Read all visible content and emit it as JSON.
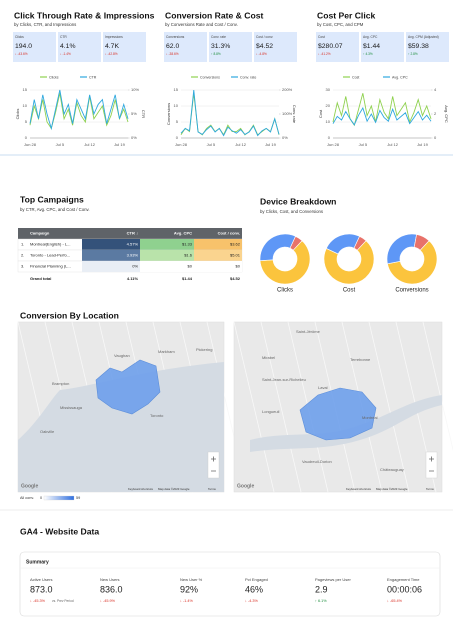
{
  "sections": [
    {
      "title": "Click Through Rate & Impressions",
      "subtitle": "by Clicks, CTR, and Impressions",
      "kpis": [
        {
          "label": "Clicks",
          "value": "194.0",
          "delta": "↓ -43.6%"
        },
        {
          "label": "CTR",
          "value": "4.1%",
          "delta": "↓ -1.4%"
        },
        {
          "label": "Impressions",
          "value": "4.7K",
          "delta": "↓ -42.8%"
        }
      ],
      "chart": {
        "type": "line",
        "categories": [
          "Jun 28",
          null,
          null,
          null,
          null,
          null,
          null,
          "Jul 5",
          null,
          null,
          null,
          null,
          null,
          null,
          "Jul 12",
          null,
          null,
          null,
          null,
          null,
          null,
          "Jul 19",
          null,
          null
        ],
        "series": [
          {
            "name": "Clicks",
            "color": "#8fd14f",
            "values": [
              4,
              10,
              6,
              12,
              5,
              3,
              8,
              14,
              6,
              9,
              4,
              11,
              7,
              5,
              13,
              6,
              8,
              10,
              4,
              7,
              12,
              6,
              9,
              5
            ]
          },
          {
            "name": "CTR",
            "color": "#2ea8df",
            "axis": "y2",
            "values": [
              3,
              8,
              4,
              9,
              5,
              2,
              6,
              10,
              5,
              7,
              3,
              8,
              6,
              4,
              9,
              5,
              7,
              8,
              3,
              6,
              9,
              4,
              7,
              4
            ]
          }
        ],
        "ylim": [
          0,
          15
        ],
        "yticks": [
          0,
          5,
          10,
          15
        ],
        "y2lim": [
          0,
          10
        ],
        "y2ticks": [
          {
            "value": 0,
            "label": "0%"
          },
          {
            "value": 5,
            "label": "5%"
          },
          {
            "value": 10,
            "label": "10%"
          }
        ],
        "y_label": "Clicks",
        "y2_label": "CTR"
      }
    },
    {
      "title": "Conversion Rate & Cost",
      "subtitle": "by Conversions Rate and Cost / Conv.",
      "kpis": [
        {
          "label": "Conversions",
          "value": "62.0",
          "delta": "↓ -38.6%"
        },
        {
          "label": "Conv. rate",
          "value": "31.3%",
          "delta": "↑ 8.8%"
        },
        {
          "label": "Cost / conv.",
          "value": "$4.52",
          "delta": "↓ -4.8%"
        }
      ],
      "chart": {
        "type": "line",
        "categories": [
          "Jun 28",
          null,
          null,
          null,
          null,
          null,
          null,
          "Jul 5",
          null,
          null,
          null,
          null,
          null,
          null,
          "Jul 12",
          null,
          null,
          null,
          null,
          null,
          null,
          "Jul 19",
          null,
          null
        ],
        "series": [
          {
            "name": "Conversions",
            "color": "#8fd14f",
            "values": [
              1,
              3,
              2,
              14,
              2,
              1,
              3,
              4,
              2,
              3,
              1,
              4,
              2,
              2,
              3,
              1,
              2,
              4,
              1,
              2,
              3,
              2,
              6,
              1
            ]
          },
          {
            "name": "Conv. rate",
            "color": "#2ea8df",
            "axis": "y2",
            "values": [
              20,
              40,
              30,
              200,
              25,
              15,
              35,
              50,
              25,
              40,
              10,
              45,
              30,
              20,
              35,
              15,
              25,
              50,
              10,
              30,
              40,
              25,
              80,
              15
            ]
          }
        ],
        "ylim": [
          0,
          15
        ],
        "yticks": [
          0,
          5,
          10,
          15
        ],
        "y2lim": [
          0,
          200
        ],
        "y2ticks": [
          {
            "value": 0,
            "label": "0%"
          },
          {
            "value": 100,
            "label": "100%"
          },
          {
            "value": 200,
            "label": "200%"
          }
        ],
        "y_label": "Conversions",
        "y2_label": "Conv. rate"
      }
    },
    {
      "title": "Cost Per Click",
      "subtitle": "by Cost, CPC, and CPM",
      "kpis": [
        {
          "label": "Cost",
          "value": "$280.07",
          "delta": "↓ -41.2%"
        },
        {
          "label": "Avg. CPC",
          "value": "$1.44",
          "delta": "↑ 4.3%"
        },
        {
          "label": "Avg. CPM (Adjusted)",
          "value": "$59.38",
          "delta": "↑ 2.8%"
        }
      ],
      "chart": {
        "type": "line",
        "categories": [
          "Jun 28",
          null,
          null,
          null,
          null,
          null,
          null,
          "Jul 5",
          null,
          null,
          null,
          null,
          null,
          null,
          "Jul 12",
          null,
          null,
          null,
          null,
          null,
          null,
          "Jul 19",
          null,
          null
        ],
        "series": [
          {
            "name": "Cost",
            "color": "#8fd14f",
            "values": [
              10,
              22,
              14,
              26,
              12,
              8,
              18,
              28,
              14,
              20,
              10,
              24,
              16,
              12,
              26,
              14,
              18,
              22,
              10,
              16,
              24,
              14,
              20,
              12
            ]
          },
          {
            "name": "Avg. CPC",
            "color": "#2ea8df",
            "axis": "y2",
            "values": [
              1.2,
              1.8,
              1.5,
              2.2,
              1.6,
              1.1,
              1.9,
              2.5,
              1.4,
              2.0,
              1.3,
              2.3,
              1.7,
              1.4,
              2.4,
              1.5,
              1.8,
              2.1,
              1.2,
              1.7,
              2.2,
              1.5,
              1.9,
              1.4
            ]
          }
        ],
        "ylim": [
          0,
          30
        ],
        "yticks": [
          0,
          10,
          20,
          30
        ],
        "y2lim": [
          0,
          4
        ],
        "y2ticks": [
          0,
          2,
          4
        ],
        "y_label": "Cost",
        "y2_label": "Avg. CPC"
      }
    }
  ],
  "campaigns": {
    "title": "Top Campaigns",
    "subtitle": "by CTR, Avg. CPC, and Cost / Conv.",
    "columns": [
      "Campaign",
      "CTR ↓",
      "Avg. CPC",
      "Cost / conv."
    ],
    "rows": [
      [
        "1.",
        "Montreal(English) - L...",
        "4.57%",
        "$1.33",
        "$3.62"
      ],
      [
        "2.",
        "Toronto - Lead-Perfo...",
        "3.93%",
        "$1.6",
        "$5.01"
      ],
      [
        "3.",
        "Financial Planning (L...",
        "0%",
        "$0",
        "$0"
      ]
    ],
    "heat": [
      [
        "#34527a",
        "#8fd18f",
        "#f7c26b"
      ],
      [
        "#5b7aa2",
        "#b9e3aa",
        "#fad48f"
      ],
      [
        "#e9eef5",
        "#ffffff",
        "#ffffff"
      ]
    ],
    "total": [
      "Grand total",
      "4.11%",
      "$1.44",
      "$4.52"
    ]
  },
  "devices": {
    "title": "Device Breakdown",
    "subtitle": "by Clicks, Cost, and Conversions",
    "colors": [
      "#fbc43d",
      "#5e97f6",
      "#e8726a"
    ],
    "charts": [
      {
        "type": "pie",
        "label": "Clicks",
        "values": [
          62,
          33,
          5
        ]
      },
      {
        "type": "pie",
        "label": "Cost",
        "values": [
          70,
          25,
          5
        ]
      },
      {
        "type": "pie",
        "label": "Conversions",
        "values": [
          60,
          31,
          9
        ]
      }
    ]
  },
  "locations": {
    "title": "Conversion By Location",
    "maps": [
      {
        "places": [
          "Vaughan",
          "Markham",
          "Brampton",
          "Mississauga",
          "Toronto",
          "Pickering",
          "Oakville"
        ],
        "google": "Google",
        "attribution": [
          "Keyboard shortcuts",
          "Map data ©2023 Google",
          "Terms"
        ]
      },
      {
        "places": [
          "Saint-Jérôme",
          "Mirabel",
          "Terrebonne",
          "Laval",
          "Montréal",
          "Longueuil",
          "Vaudreuil-Dorion",
          "Châteauguay",
          "Saint-Jean-sur-Richelieu"
        ],
        "google": "Google",
        "attribution": [
          "Keyboard shortcuts",
          "Map data ©2023 Google",
          "Terms"
        ]
      }
    ],
    "legend": {
      "label": "All conv.",
      "min": 0,
      "max": 59
    }
  },
  "ga4": {
    "title": "GA4 - Website Data",
    "summary": {
      "title": "Summary",
      "metrics": [
        {
          "label": "Active Users",
          "value": "873.0",
          "delta": "↓ -45.3%",
          "note": "vs. Prev Period",
          "trend": "down"
        },
        {
          "label": "New Users",
          "value": "836.0",
          "delta": "↓ -45.9%",
          "trend": "down"
        },
        {
          "label": "New User %",
          "value": "92%",
          "delta": "↓ -1.4%",
          "trend": "down"
        },
        {
          "label": "Pct Engaged",
          "value": "46%",
          "delta": "↓ -4.3%",
          "trend": "down"
        },
        {
          "label": "Pageviews per User",
          "value": "2.9",
          "delta": "↑ 6.1%",
          "trend": "up"
        },
        {
          "label": "Engagement Time",
          "value": "00:00:06",
          "delta": "↓ -65.4%",
          "trend": "down"
        }
      ]
    }
  }
}
